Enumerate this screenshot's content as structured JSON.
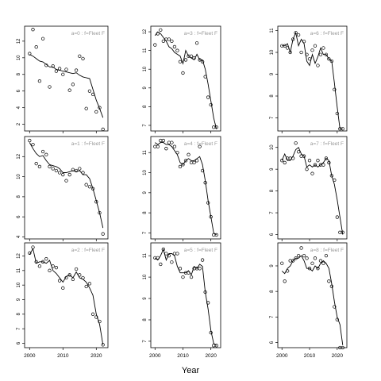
{
  "chart_data": {
    "type": "scatter",
    "xlabel": "Year",
    "layout_note_grid": "3x3 small multiples",
    "panels": [
      {
        "title": "a=0  :  f=Fleet F",
        "x_ticks": [
          2000,
          2010,
          2020
        ],
        "y_ticks": [
          2,
          4,
          6,
          8,
          10,
          12
        ],
        "ylim": [
          1.2,
          13.8
        ],
        "x": [
          2000,
          2001,
          2002,
          2003,
          2004,
          2005,
          2006,
          2007,
          2008,
          2009,
          2010,
          2011,
          2012,
          2013,
          2014,
          2015,
          2016,
          2017,
          2018,
          2019,
          2020,
          2021,
          2022
        ],
        "points": [
          10.5,
          13.4,
          11.3,
          7.2,
          12.3,
          9.1,
          6.5,
          9.0,
          8.4,
          8.7,
          8.0,
          8.6,
          6.1,
          6.8,
          8.5,
          10.2,
          9.9,
          3.9,
          6.0,
          5.6,
          3.5,
          4.0,
          1.4
        ],
        "fit": [
          10.4,
          10.2,
          9.9,
          9.6,
          9.5,
          9.2,
          8.9,
          8.9,
          8.6,
          8.5,
          8.4,
          8.3,
          8.2,
          8.1,
          8.2,
          7.9,
          7.7,
          7.6,
          7.5,
          6.2,
          4.9,
          3.9,
          2.8
        ]
      },
      {
        "title": "a=3  :  f=Fleet F",
        "x_ticks": [
          2000,
          2010,
          2020
        ],
        "y_ticks": [
          7,
          8,
          9,
          10,
          11,
          12
        ],
        "ylim": [
          6.7,
          12.3
        ],
        "x": [
          2000,
          2001,
          2002,
          2003,
          2004,
          2005,
          2006,
          2007,
          2008,
          2009,
          2010,
          2011,
          2012,
          2013,
          2014,
          2015,
          2016,
          2017,
          2018,
          2019,
          2020,
          2021,
          2022
        ],
        "points": [
          11.3,
          11.9,
          12.1,
          11.5,
          11.6,
          11.6,
          11.5,
          11.2,
          11.0,
          10.4,
          9.8,
          10.5,
          10.7,
          10.7,
          10.6,
          11.4,
          10.5,
          10.4,
          9.6,
          8.5,
          8.1,
          6.9,
          6.9
        ],
        "fit": [
          11.8,
          12.0,
          11.9,
          11.7,
          11.5,
          11.2,
          11.1,
          10.9,
          10.8,
          10.7,
          10.3,
          11.0,
          10.7,
          10.6,
          10.5,
          10.8,
          10.5,
          10.5,
          10.0,
          9.2,
          8.3,
          7.4,
          6.8
        ]
      },
      {
        "title": "a=6  :  f=Fleet F",
        "x_ticks": [
          2000,
          2010,
          2020
        ],
        "y_ticks": [
          7,
          8,
          9,
          10,
          11
        ],
        "ylim": [
          6.4,
          11.2
        ],
        "x": [
          2000,
          2001,
          2002,
          2003,
          2004,
          2005,
          2006,
          2007,
          2008,
          2009,
          2010,
          2011,
          2012,
          2013,
          2014,
          2015,
          2016,
          2017,
          2018,
          2019,
          2020,
          2021,
          2022
        ],
        "points": [
          10.3,
          10.3,
          10.2,
          10.0,
          10.6,
          10.9,
          10.8,
          10.0,
          10.5,
          9.9,
          9.7,
          10.1,
          10.3,
          9.4,
          9.9,
          10.2,
          9.9,
          9.7,
          9.6,
          8.3,
          7.2,
          6.5,
          6.5
        ],
        "fit": [
          10.3,
          10.3,
          10.4,
          10.0,
          10.6,
          10.9,
          10.3,
          10.6,
          10.4,
          9.6,
          9.4,
          9.9,
          9.5,
          9.8,
          10.2,
          9.9,
          9.9,
          9.7,
          9.6,
          8.6,
          7.5,
          6.5,
          6.5
        ]
      },
      {
        "title": "a=1  :  f=Fleet F",
        "x_ticks": [
          2000,
          2010,
          2020
        ],
        "y_ticks": [
          4,
          6,
          8,
          10,
          12
        ],
        "ylim": [
          3.8,
          14.0
        ],
        "x": [
          2000,
          2001,
          2002,
          2003,
          2004,
          2005,
          2006,
          2007,
          2008,
          2009,
          2010,
          2011,
          2012,
          2013,
          2014,
          2015,
          2016,
          2017,
          2018,
          2019,
          2020,
          2021,
          2022
        ],
        "points": [
          13.6,
          13.2,
          11.3,
          11.0,
          12.5,
          12.2,
          11.0,
          10.8,
          10.6,
          10.4,
          10.2,
          9.6,
          10.2,
          10.7,
          10.6,
          10.8,
          10.4,
          9.2,
          9.0,
          8.8,
          7.5,
          6.4,
          4.3
        ],
        "fit": [
          13.4,
          12.8,
          12.3,
          12.0,
          12.1,
          11.6,
          11.2,
          11.1,
          11.0,
          10.8,
          10.4,
          10.4,
          10.5,
          10.6,
          10.5,
          10.6,
          10.2,
          10.2,
          9.8,
          8.8,
          7.6,
          6.4,
          4.9
        ]
      },
      {
        "title": "a=4  :  f=Fleet F",
        "x_ticks": [
          2000,
          2010,
          2020
        ],
        "y_ticks": [
          7,
          8,
          9,
          10,
          11
        ],
        "ylim": [
          6.7,
          11.8
        ],
        "x": [
          2000,
          2001,
          2002,
          2003,
          2004,
          2005,
          2006,
          2007,
          2008,
          2009,
          2010,
          2011,
          2012,
          2013,
          2014,
          2015,
          2016,
          2017,
          2018,
          2019,
          2020,
          2021,
          2022
        ],
        "points": [
          11.3,
          11.3,
          11.6,
          11.6,
          11.2,
          11.5,
          11.5,
          11.3,
          11.0,
          10.3,
          10.4,
          10.6,
          10.9,
          10.5,
          10.5,
          10.6,
          11.3,
          10.1,
          9.5,
          8.5,
          7.8,
          6.9,
          6.9
        ],
        "fit": [
          11.5,
          11.4,
          11.5,
          11.5,
          11.4,
          11.4,
          11.3,
          11.1,
          10.9,
          10.5,
          10.4,
          10.6,
          10.7,
          10.6,
          10.6,
          10.7,
          10.8,
          10.4,
          9.6,
          8.6,
          7.8,
          7.0,
          6.9
        ]
      },
      {
        "title": "a=7  :  f=Fleet F",
        "x_ticks": [
          2000,
          2010,
          2020
        ],
        "y_ticks": [
          6,
          7,
          8,
          9,
          10
        ],
        "ylim": [
          5.8,
          10.5
        ],
        "x": [
          2000,
          2001,
          2002,
          2003,
          2004,
          2005,
          2006,
          2007,
          2008,
          2009,
          2010,
          2011,
          2012,
          2013,
          2014,
          2015,
          2016,
          2017,
          2018,
          2019,
          2020,
          2021,
          2022
        ],
        "points": [
          9.4,
          9.3,
          9.5,
          9.5,
          9.5,
          10.2,
          9.8,
          9.6,
          9.6,
          9.0,
          9.4,
          8.8,
          9.2,
          9.4,
          9.2,
          9.2,
          9.5,
          9.3,
          8.7,
          8.5,
          6.8,
          6.1,
          6.1
        ],
        "fit": [
          9.4,
          9.7,
          9.4,
          9.4,
          9.6,
          9.9,
          10.0,
          9.7,
          9.6,
          9.1,
          9.2,
          9.1,
          9.2,
          9.1,
          9.2,
          9.3,
          9.5,
          9.4,
          8.7,
          8.3,
          7.6,
          6.8,
          6.0
        ]
      },
      {
        "title": "a=2  :  f=Fleet F",
        "x_ticks": [
          2000,
          2010,
          2020
        ],
        "y_ticks": [
          6,
          7,
          8,
          9,
          10,
          11,
          12
        ],
        "ylim": [
          5.7,
          12.9
        ],
        "x": [
          2000,
          2001,
          2002,
          2003,
          2004,
          2005,
          2006,
          2007,
          2008,
          2009,
          2010,
          2011,
          2012,
          2013,
          2014,
          2015,
          2016,
          2017,
          2018,
          2019,
          2020,
          2021,
          2022
        ],
        "points": [
          12.2,
          12.6,
          11.6,
          11.3,
          11.6,
          11.8,
          11.0,
          11.3,
          11.2,
          10.3,
          9.8,
          10.5,
          10.7,
          10.4,
          11.1,
          10.7,
          10.5,
          9.9,
          10.1,
          8.0,
          7.8,
          7.5,
          5.9
        ],
        "fit": [
          12.1,
          12.5,
          11.5,
          11.6,
          11.6,
          11.5,
          11.7,
          11.0,
          10.8,
          10.5,
          10.2,
          10.6,
          10.7,
          10.5,
          10.9,
          10.5,
          10.4,
          10.2,
          9.8,
          9.3,
          8.0,
          7.3,
          5.9
        ]
      },
      {
        "title": "a=5  :  f=Fleet F",
        "x_ticks": [
          2000,
          2010,
          2020
        ],
        "y_ticks": [
          7,
          8,
          9,
          10,
          11
        ],
        "ylim": [
          6.7,
          11.6
        ],
        "x": [
          2000,
          2001,
          2002,
          2003,
          2004,
          2005,
          2006,
          2007,
          2008,
          2009,
          2010,
          2011,
          2012,
          2013,
          2014,
          2015,
          2016,
          2017,
          2018,
          2019,
          2020,
          2021,
          2022
        ],
        "points": [
          10.9,
          10.9,
          10.6,
          11.3,
          11.1,
          11.0,
          10.7,
          11.1,
          11.1,
          10.4,
          10.0,
          10.2,
          10.2,
          10.0,
          10.4,
          10.4,
          10.4,
          10.8,
          9.3,
          8.8,
          7.4,
          6.8,
          6.8
        ],
        "fit": [
          10.9,
          10.8,
          11.0,
          11.3,
          10.8,
          11.1,
          11.1,
          11.0,
          10.5,
          10.2,
          10.2,
          10.2,
          10.3,
          10.1,
          10.5,
          10.4,
          10.6,
          10.5,
          9.3,
          8.5,
          7.5,
          6.9,
          6.8
        ]
      },
      {
        "title": "a=8  :  f=Fleet F",
        "x_ticks": [
          2000,
          2010,
          2020
        ],
        "y_ticks": [
          6,
          7,
          8,
          9
        ],
        "ylim": [
          5.8,
          9.9
        ],
        "x": [
          2000,
          2001,
          2002,
          2003,
          2004,
          2005,
          2006,
          2007,
          2008,
          2009,
          2010,
          2011,
          2012,
          2013,
          2014,
          2015,
          2016,
          2017,
          2018,
          2019,
          2020,
          2021,
          2022
        ],
        "points": [
          9.1,
          8.4,
          8.8,
          9.2,
          9.2,
          9.3,
          9.4,
          9.7,
          9.4,
          9.3,
          8.9,
          9.1,
          9.3,
          8.9,
          9.2,
          9.1,
          9.4,
          8.4,
          8.2,
          7.4,
          6.9,
          5.8,
          5.8
        ],
        "fit": [
          8.8,
          8.7,
          8.9,
          9.0,
          9.2,
          9.3,
          9.3,
          9.4,
          9.2,
          8.9,
          8.9,
          8.8,
          9.0,
          8.9,
          9.1,
          9.2,
          9.1,
          8.9,
          8.3,
          7.6,
          7.0,
          6.7,
          5.9
        ]
      }
    ]
  }
}
